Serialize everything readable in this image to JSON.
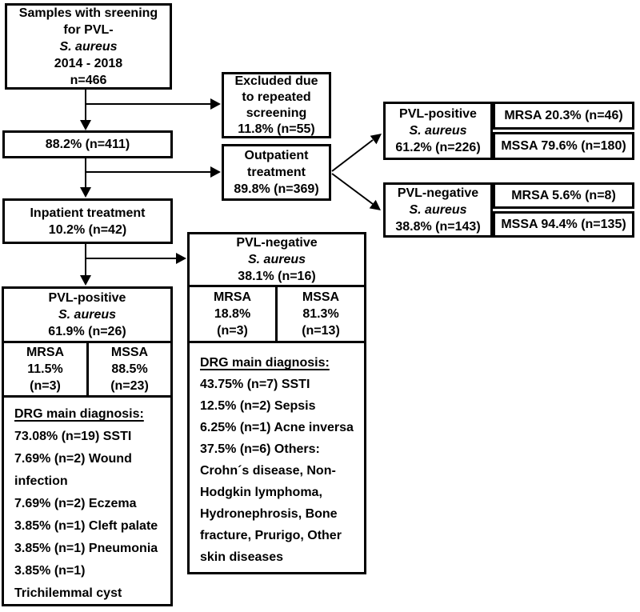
{
  "colors": {
    "line": "#000000",
    "background": "#ffffff",
    "text": "#000000"
  },
  "flowchart": {
    "samples_box": {
      "l1": "Samples with sreening",
      "l2": "for PVL-",
      "species": "S. aureus",
      "l3": "2014 - 2018",
      "l4": "n=466"
    },
    "excluded_box": {
      "l1": "Excluded due",
      "l2": "to repeated",
      "l3": "screening",
      "l4": "11.8% (n=55)"
    },
    "included_box": {
      "l1": "88.2% (n=411)"
    },
    "outpatient_box": {
      "l1": "Outpatient",
      "l2": "treatment",
      "l3": "89.8% (n=369)"
    },
    "inpatient_box": {
      "l1": "Inpatient treatment",
      "l2": "10.2% (n=42)"
    },
    "outpatient_pvl_positive": {
      "l1": "PVL-positive",
      "species": "S. aureus",
      "l2": "61.2% (n=226)",
      "mrsa": "MRSA 20.3% (n=46)",
      "mssa": "MSSA 79.6% (n=180)"
    },
    "outpatient_pvl_negative": {
      "l1": "PVL-negative",
      "species": "S. aureus",
      "l2": "38.8% (n=143)",
      "mrsa": "MRSA 5.6% (n=8)",
      "mssa": "MSSA 94.4% (n=135)"
    },
    "inpatient_pvl_negative": {
      "l1": "PVL-negative",
      "species": "S. aureus",
      "l2": "38.1% (n=16)",
      "mrsa": {
        "l1": "MRSA",
        "l2": "18.8%",
        "l3": "(n=3)"
      },
      "mssa": {
        "l1": "MSSA",
        "l2": "81.3%",
        "l3": "(n=13)"
      },
      "drg_heading": "DRG main diagnosis:",
      "drg_lines": [
        "43.75% (n=7) SSTI",
        "12.5% (n=2) Sepsis",
        "6.25% (n=1) Acne inversa",
        "37.5% (n=6) Others:",
        "Crohn´s disease, Non-",
        "Hodgkin lymphoma,",
        "Hydronephrosis, Bone",
        "fracture, Prurigo, Other",
        "skin diseases"
      ]
    },
    "inpatient_pvl_positive": {
      "l1": "PVL-positive",
      "species": "S. aureus",
      "l2": "61.9% (n=26)",
      "mrsa": {
        "l1": "MRSA",
        "l2": "11.5%",
        "l3": "(n=3)"
      },
      "mssa": {
        "l1": "MSSA",
        "l2": "88.5%",
        "l3": "(n=23)"
      },
      "drg_heading": "DRG main diagnosis:",
      "drg_lines": [
        "73.08% (n=19) SSTI",
        "7.69% (n=2) Wound",
        "infection",
        "7.69% (n=2) Eczema",
        "3.85% (n=1) Cleft palate",
        "3.85% (n=1) Pneumonia",
        "3.85% (n=1)",
        "Trichilemmal cyst"
      ]
    }
  }
}
